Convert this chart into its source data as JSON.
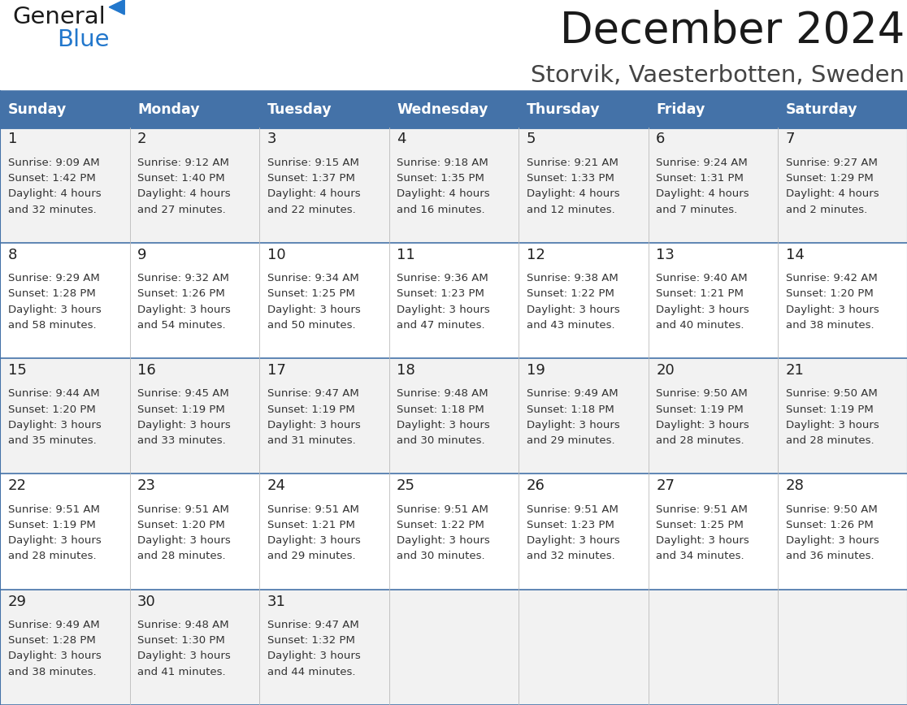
{
  "title": "December 2024",
  "subtitle": "Storvik, Vaesterbotten, Sweden",
  "days_of_week": [
    "Sunday",
    "Monday",
    "Tuesday",
    "Wednesday",
    "Thursday",
    "Friday",
    "Saturday"
  ],
  "header_bg_color": "#4472a8",
  "header_text_color": "#ffffff",
  "row_bg_even": "#f2f2f2",
  "row_bg_odd": "#ffffff",
  "divider_color": "#4472a8",
  "text_color": "#333333",
  "calendar_data": [
    [
      {
        "day": 1,
        "sunrise": "9:09 AM",
        "sunset": "1:42 PM",
        "daylight": "4 hours and 32 minutes."
      },
      {
        "day": 2,
        "sunrise": "9:12 AM",
        "sunset": "1:40 PM",
        "daylight": "4 hours and 27 minutes."
      },
      {
        "day": 3,
        "sunrise": "9:15 AM",
        "sunset": "1:37 PM",
        "daylight": "4 hours and 22 minutes."
      },
      {
        "day": 4,
        "sunrise": "9:18 AM",
        "sunset": "1:35 PM",
        "daylight": "4 hours and 16 minutes."
      },
      {
        "day": 5,
        "sunrise": "9:21 AM",
        "sunset": "1:33 PM",
        "daylight": "4 hours and 12 minutes."
      },
      {
        "day": 6,
        "sunrise": "9:24 AM",
        "sunset": "1:31 PM",
        "daylight": "4 hours and 7 minutes."
      },
      {
        "day": 7,
        "sunrise": "9:27 AM",
        "sunset": "1:29 PM",
        "daylight": "4 hours and 2 minutes."
      }
    ],
    [
      {
        "day": 8,
        "sunrise": "9:29 AM",
        "sunset": "1:28 PM",
        "daylight": "3 hours and 58 minutes."
      },
      {
        "day": 9,
        "sunrise": "9:32 AM",
        "sunset": "1:26 PM",
        "daylight": "3 hours and 54 minutes."
      },
      {
        "day": 10,
        "sunrise": "9:34 AM",
        "sunset": "1:25 PM",
        "daylight": "3 hours and 50 minutes."
      },
      {
        "day": 11,
        "sunrise": "9:36 AM",
        "sunset": "1:23 PM",
        "daylight": "3 hours and 47 minutes."
      },
      {
        "day": 12,
        "sunrise": "9:38 AM",
        "sunset": "1:22 PM",
        "daylight": "3 hours and 43 minutes."
      },
      {
        "day": 13,
        "sunrise": "9:40 AM",
        "sunset": "1:21 PM",
        "daylight": "3 hours and 40 minutes."
      },
      {
        "day": 14,
        "sunrise": "9:42 AM",
        "sunset": "1:20 PM",
        "daylight": "3 hours and 38 minutes."
      }
    ],
    [
      {
        "day": 15,
        "sunrise": "9:44 AM",
        "sunset": "1:20 PM",
        "daylight": "3 hours and 35 minutes."
      },
      {
        "day": 16,
        "sunrise": "9:45 AM",
        "sunset": "1:19 PM",
        "daylight": "3 hours and 33 minutes."
      },
      {
        "day": 17,
        "sunrise": "9:47 AM",
        "sunset": "1:19 PM",
        "daylight": "3 hours and 31 minutes."
      },
      {
        "day": 18,
        "sunrise": "9:48 AM",
        "sunset": "1:18 PM",
        "daylight": "3 hours and 30 minutes."
      },
      {
        "day": 19,
        "sunrise": "9:49 AM",
        "sunset": "1:18 PM",
        "daylight": "3 hours and 29 minutes."
      },
      {
        "day": 20,
        "sunrise": "9:50 AM",
        "sunset": "1:19 PM",
        "daylight": "3 hours and 28 minutes."
      },
      {
        "day": 21,
        "sunrise": "9:50 AM",
        "sunset": "1:19 PM",
        "daylight": "3 hours and 28 minutes."
      }
    ],
    [
      {
        "day": 22,
        "sunrise": "9:51 AM",
        "sunset": "1:19 PM",
        "daylight": "3 hours and 28 minutes."
      },
      {
        "day": 23,
        "sunrise": "9:51 AM",
        "sunset": "1:20 PM",
        "daylight": "3 hours and 28 minutes."
      },
      {
        "day": 24,
        "sunrise": "9:51 AM",
        "sunset": "1:21 PM",
        "daylight": "3 hours and 29 minutes."
      },
      {
        "day": 25,
        "sunrise": "9:51 AM",
        "sunset": "1:22 PM",
        "daylight": "3 hours and 30 minutes."
      },
      {
        "day": 26,
        "sunrise": "9:51 AM",
        "sunset": "1:23 PM",
        "daylight": "3 hours and 32 minutes."
      },
      {
        "day": 27,
        "sunrise": "9:51 AM",
        "sunset": "1:25 PM",
        "daylight": "3 hours and 34 minutes."
      },
      {
        "day": 28,
        "sunrise": "9:50 AM",
        "sunset": "1:26 PM",
        "daylight": "3 hours and 36 minutes."
      }
    ],
    [
      {
        "day": 29,
        "sunrise": "9:49 AM",
        "sunset": "1:28 PM",
        "daylight": "3 hours and 38 minutes."
      },
      {
        "day": 30,
        "sunrise": "9:48 AM",
        "sunset": "1:30 PM",
        "daylight": "3 hours and 41 minutes."
      },
      {
        "day": 31,
        "sunrise": "9:47 AM",
        "sunset": "1:32 PM",
        "daylight": "3 hours and 44 minutes."
      },
      null,
      null,
      null,
      null
    ]
  ]
}
